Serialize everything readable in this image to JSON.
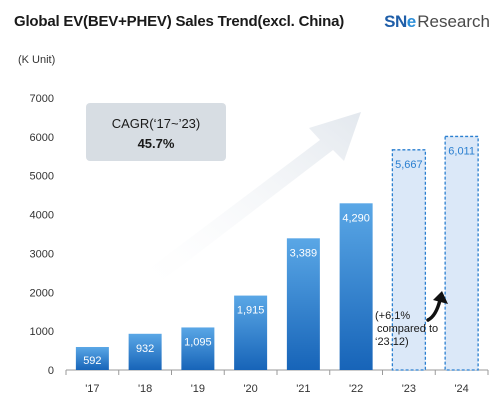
{
  "title": "Global EV(BEV+PHEV) Sales Trend(excl. China)",
  "unit_label": "(K Unit)",
  "logo": {
    "sn": "SN",
    "e": "e",
    "research": "Research"
  },
  "colors": {
    "bar_top": "#5aa7e6",
    "bar_bottom": "#1764b8",
    "forecast_fill": "#dbe8f8",
    "forecast_border": "#2a7fd0",
    "cagr_box": "#d7dde3",
    "arrow": "#e3e8ee"
  },
  "cagr": {
    "label": "CAGR(‘17~’23)",
    "value": "45.7%"
  },
  "note": {
    "lines": [
      "(+6.1%",
      "compared to",
      "‘23.12)"
    ]
  },
  "chart_data": {
    "type": "bar",
    "categories": [
      "'17",
      "'18",
      "'19",
      "'20",
      "'21",
      "'22",
      "'23",
      "'24"
    ],
    "values": [
      592,
      932,
      1095,
      1915,
      3389,
      4290,
      5667,
      6011
    ],
    "labels": [
      "592",
      "932",
      "1,095",
      "1,915",
      "3,389",
      "4,290",
      "5,667",
      "6,011"
    ],
    "forecast": [
      false,
      false,
      false,
      false,
      false,
      false,
      true,
      true
    ],
    "title": "Global EV(BEV+PHEV) Sales Trend(excl. China)",
    "ylabel": "(K Unit)",
    "xlabel": "",
    "ylim": [
      0,
      7000
    ],
    "yticks": [
      0,
      1000,
      2000,
      3000,
      4000,
      5000,
      6000,
      7000
    ],
    "grid": false,
    "legend": "none"
  }
}
